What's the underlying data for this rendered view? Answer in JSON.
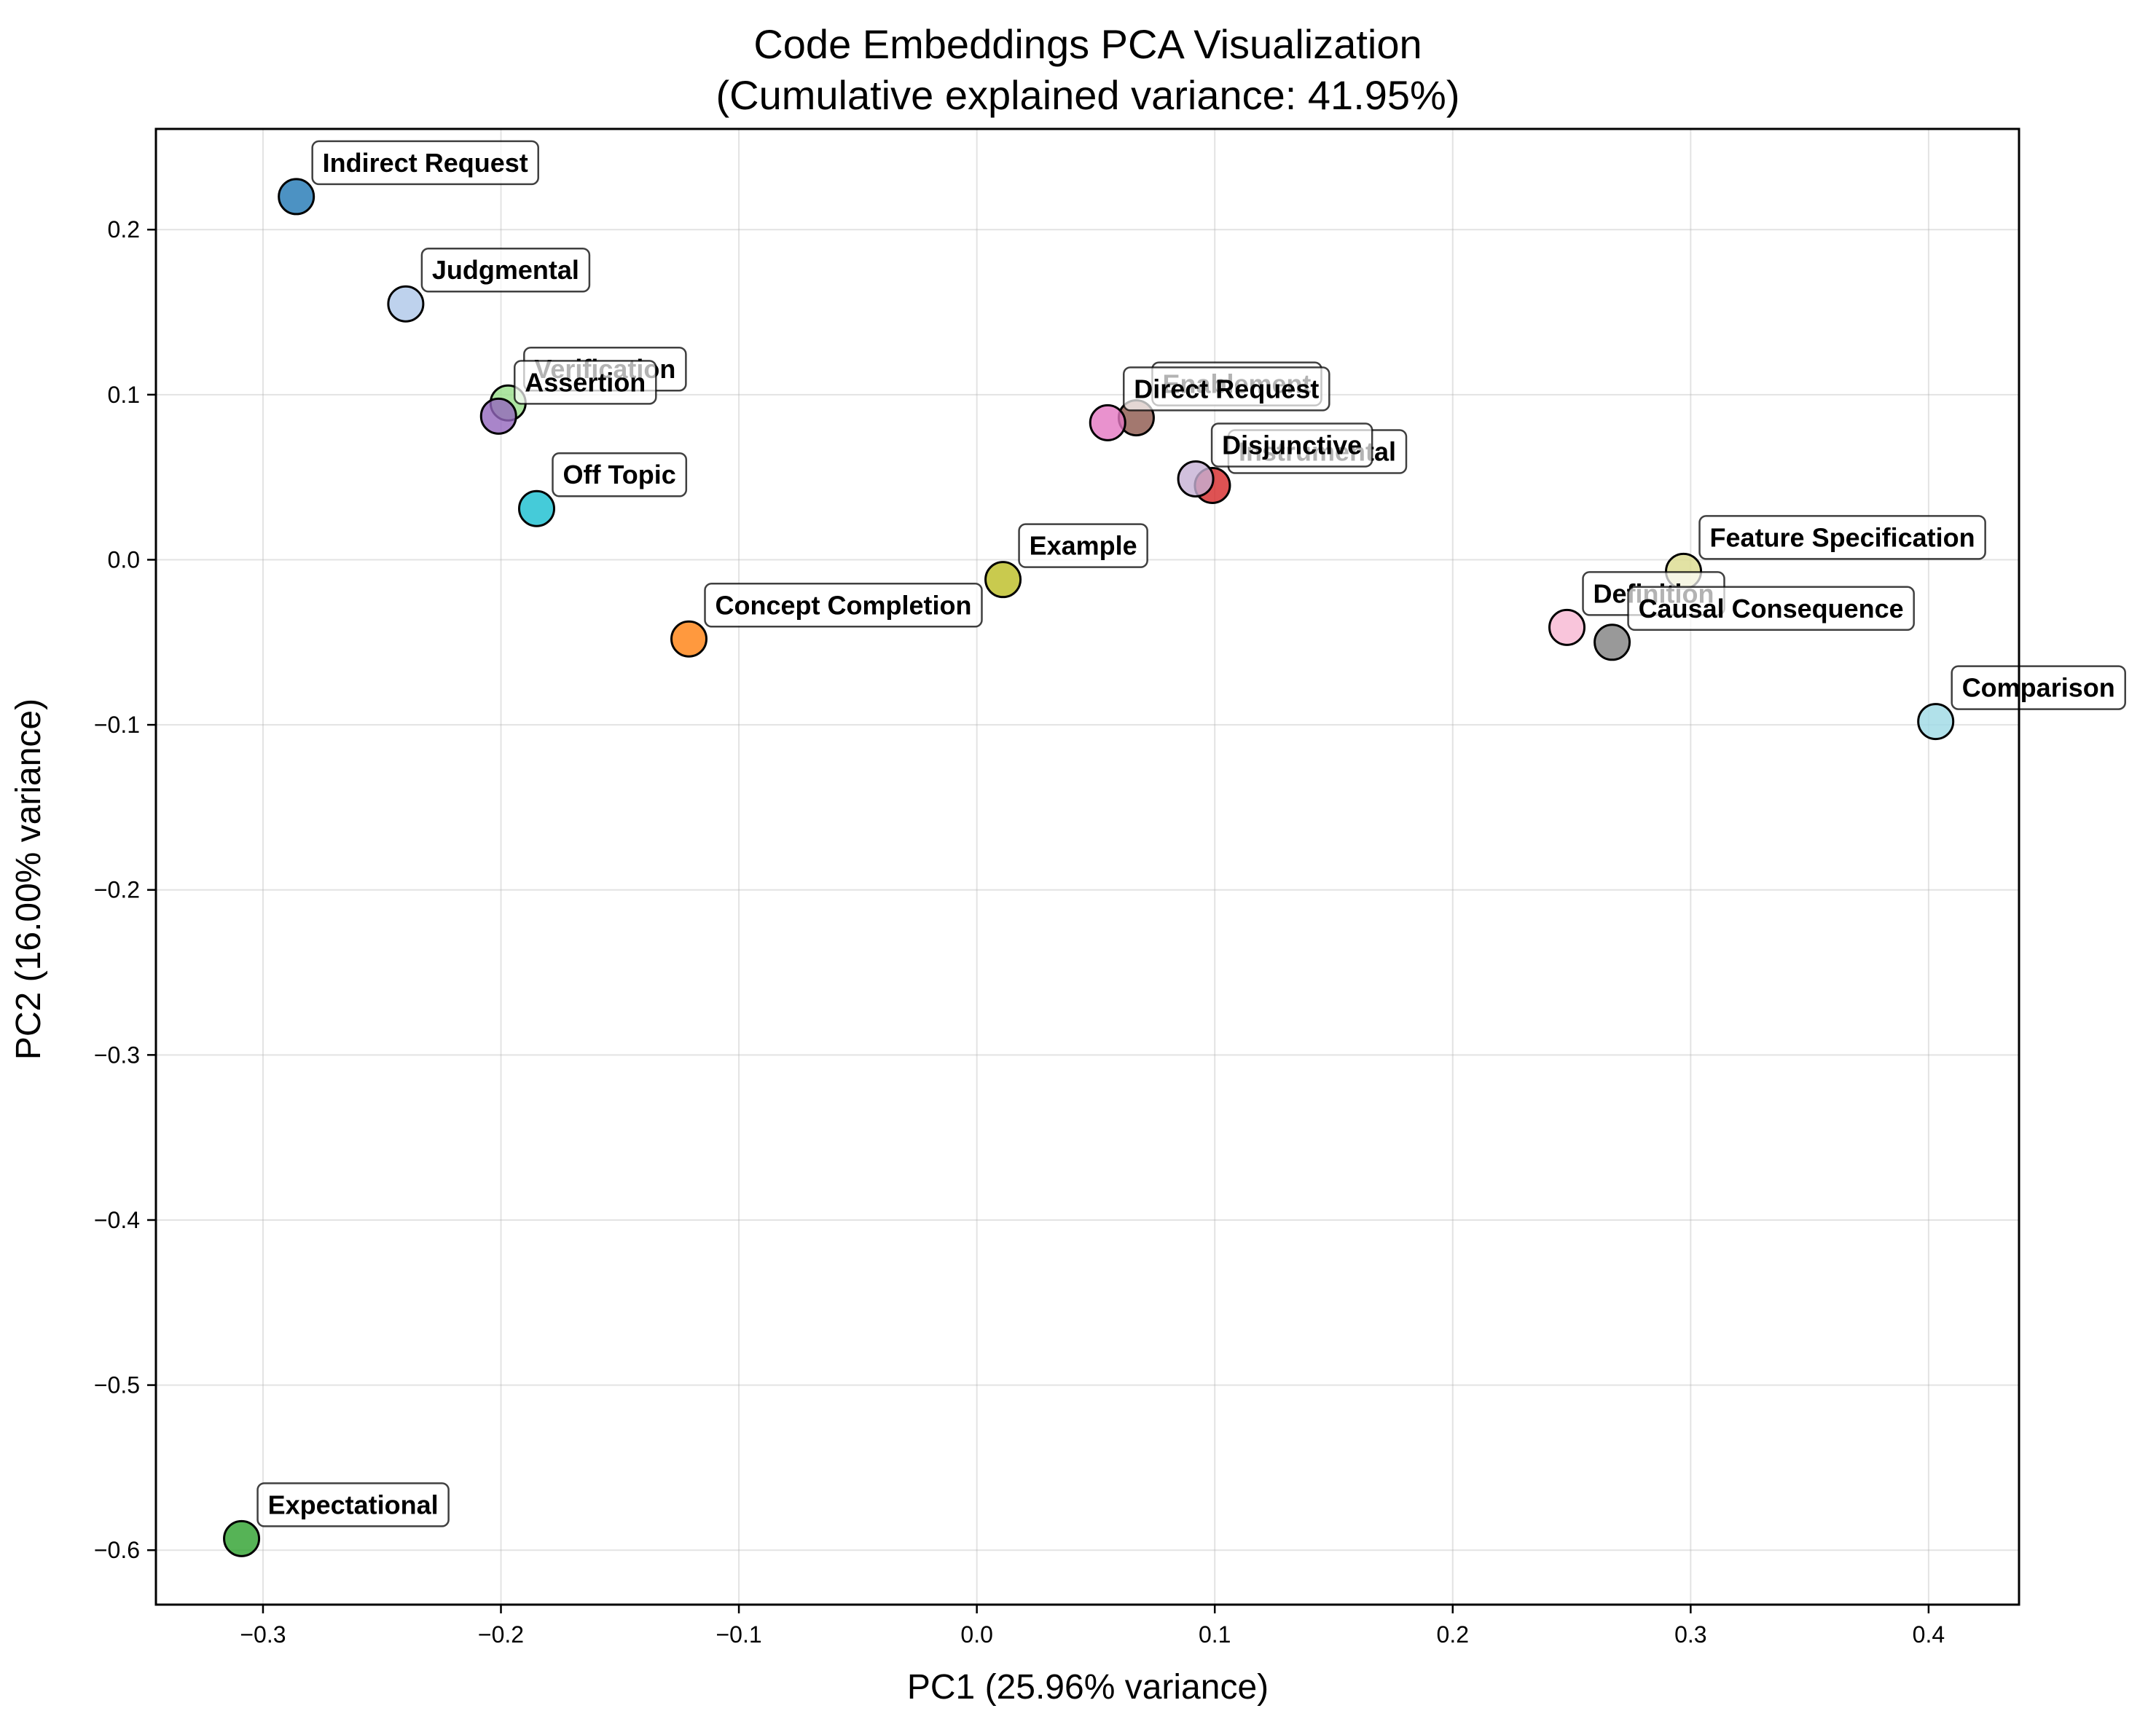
{
  "chart_data": {
    "type": "scatter",
    "title": "Code Embeddings PCA Visualization",
    "subtitle": "(Cumulative explained variance: 41.95%)",
    "xlabel": "PC1 (25.96% variance)",
    "ylabel": "PC2 (16.00% variance)",
    "xlim": [
      -0.345,
      0.438
    ],
    "ylim": [
      -0.633,
      0.261
    ],
    "xticks": [
      -0.3,
      -0.2,
      -0.1,
      0.0,
      0.1,
      0.2,
      0.3,
      0.4
    ],
    "xtick_labels": [
      "−0.3",
      "−0.2",
      "−0.1",
      "0.0",
      "0.1",
      "0.2",
      "0.3",
      "0.4"
    ],
    "yticks": [
      -0.6,
      -0.5,
      -0.4,
      -0.3,
      -0.2,
      -0.1,
      0.0,
      0.1,
      0.2
    ],
    "ytick_labels": [
      "−0.6",
      "−0.5",
      "−0.4",
      "−0.3",
      "−0.2",
      "−0.1",
      "0.0",
      "0.1",
      "0.2"
    ],
    "grid": true,
    "points": [
      {
        "label": "Indirect Request",
        "x": -0.286,
        "y": 0.22,
        "color": "#1f77b4"
      },
      {
        "label": "Judgmental",
        "x": -0.24,
        "y": 0.155,
        "color": "#aec7e8"
      },
      {
        "label": "Verification",
        "x": -0.197,
        "y": 0.095,
        "color": "#98df8a"
      },
      {
        "label": "Assertion",
        "x": -0.201,
        "y": 0.087,
        "color": "#9467bd"
      },
      {
        "label": "Off Topic",
        "x": -0.185,
        "y": 0.031,
        "color": "#17becf"
      },
      {
        "label": "Concept Completion",
        "x": -0.121,
        "y": -0.048,
        "color": "#ff7f0e"
      },
      {
        "label": "Example",
        "x": 0.011,
        "y": -0.012,
        "color": "#bcbd22"
      },
      {
        "label": "Enablement",
        "x": 0.067,
        "y": 0.086,
        "color": "#8c564b"
      },
      {
        "label": "Direct Request",
        "x": 0.055,
        "y": 0.083,
        "color": "#e377c2"
      },
      {
        "label": "Instrumental",
        "x": 0.099,
        "y": 0.045,
        "color": "#d62728"
      },
      {
        "label": "Disjunctive",
        "x": 0.092,
        "y": 0.049,
        "color": "#c5b0d5"
      },
      {
        "label": "Feature Specification",
        "x": 0.297,
        "y": -0.007,
        "color": "#dbdb8d"
      },
      {
        "label": "Definition",
        "x": 0.248,
        "y": -0.041,
        "color": "#f7b6d2"
      },
      {
        "label": "Causal Consequence",
        "x": 0.267,
        "y": -0.05,
        "color": "#7f7f7f"
      },
      {
        "label": "Comparison",
        "x": 0.403,
        "y": -0.098,
        "color": "#9edae5"
      },
      {
        "label": "Expectational",
        "x": -0.309,
        "y": -0.593,
        "color": "#2ca02c"
      }
    ]
  }
}
